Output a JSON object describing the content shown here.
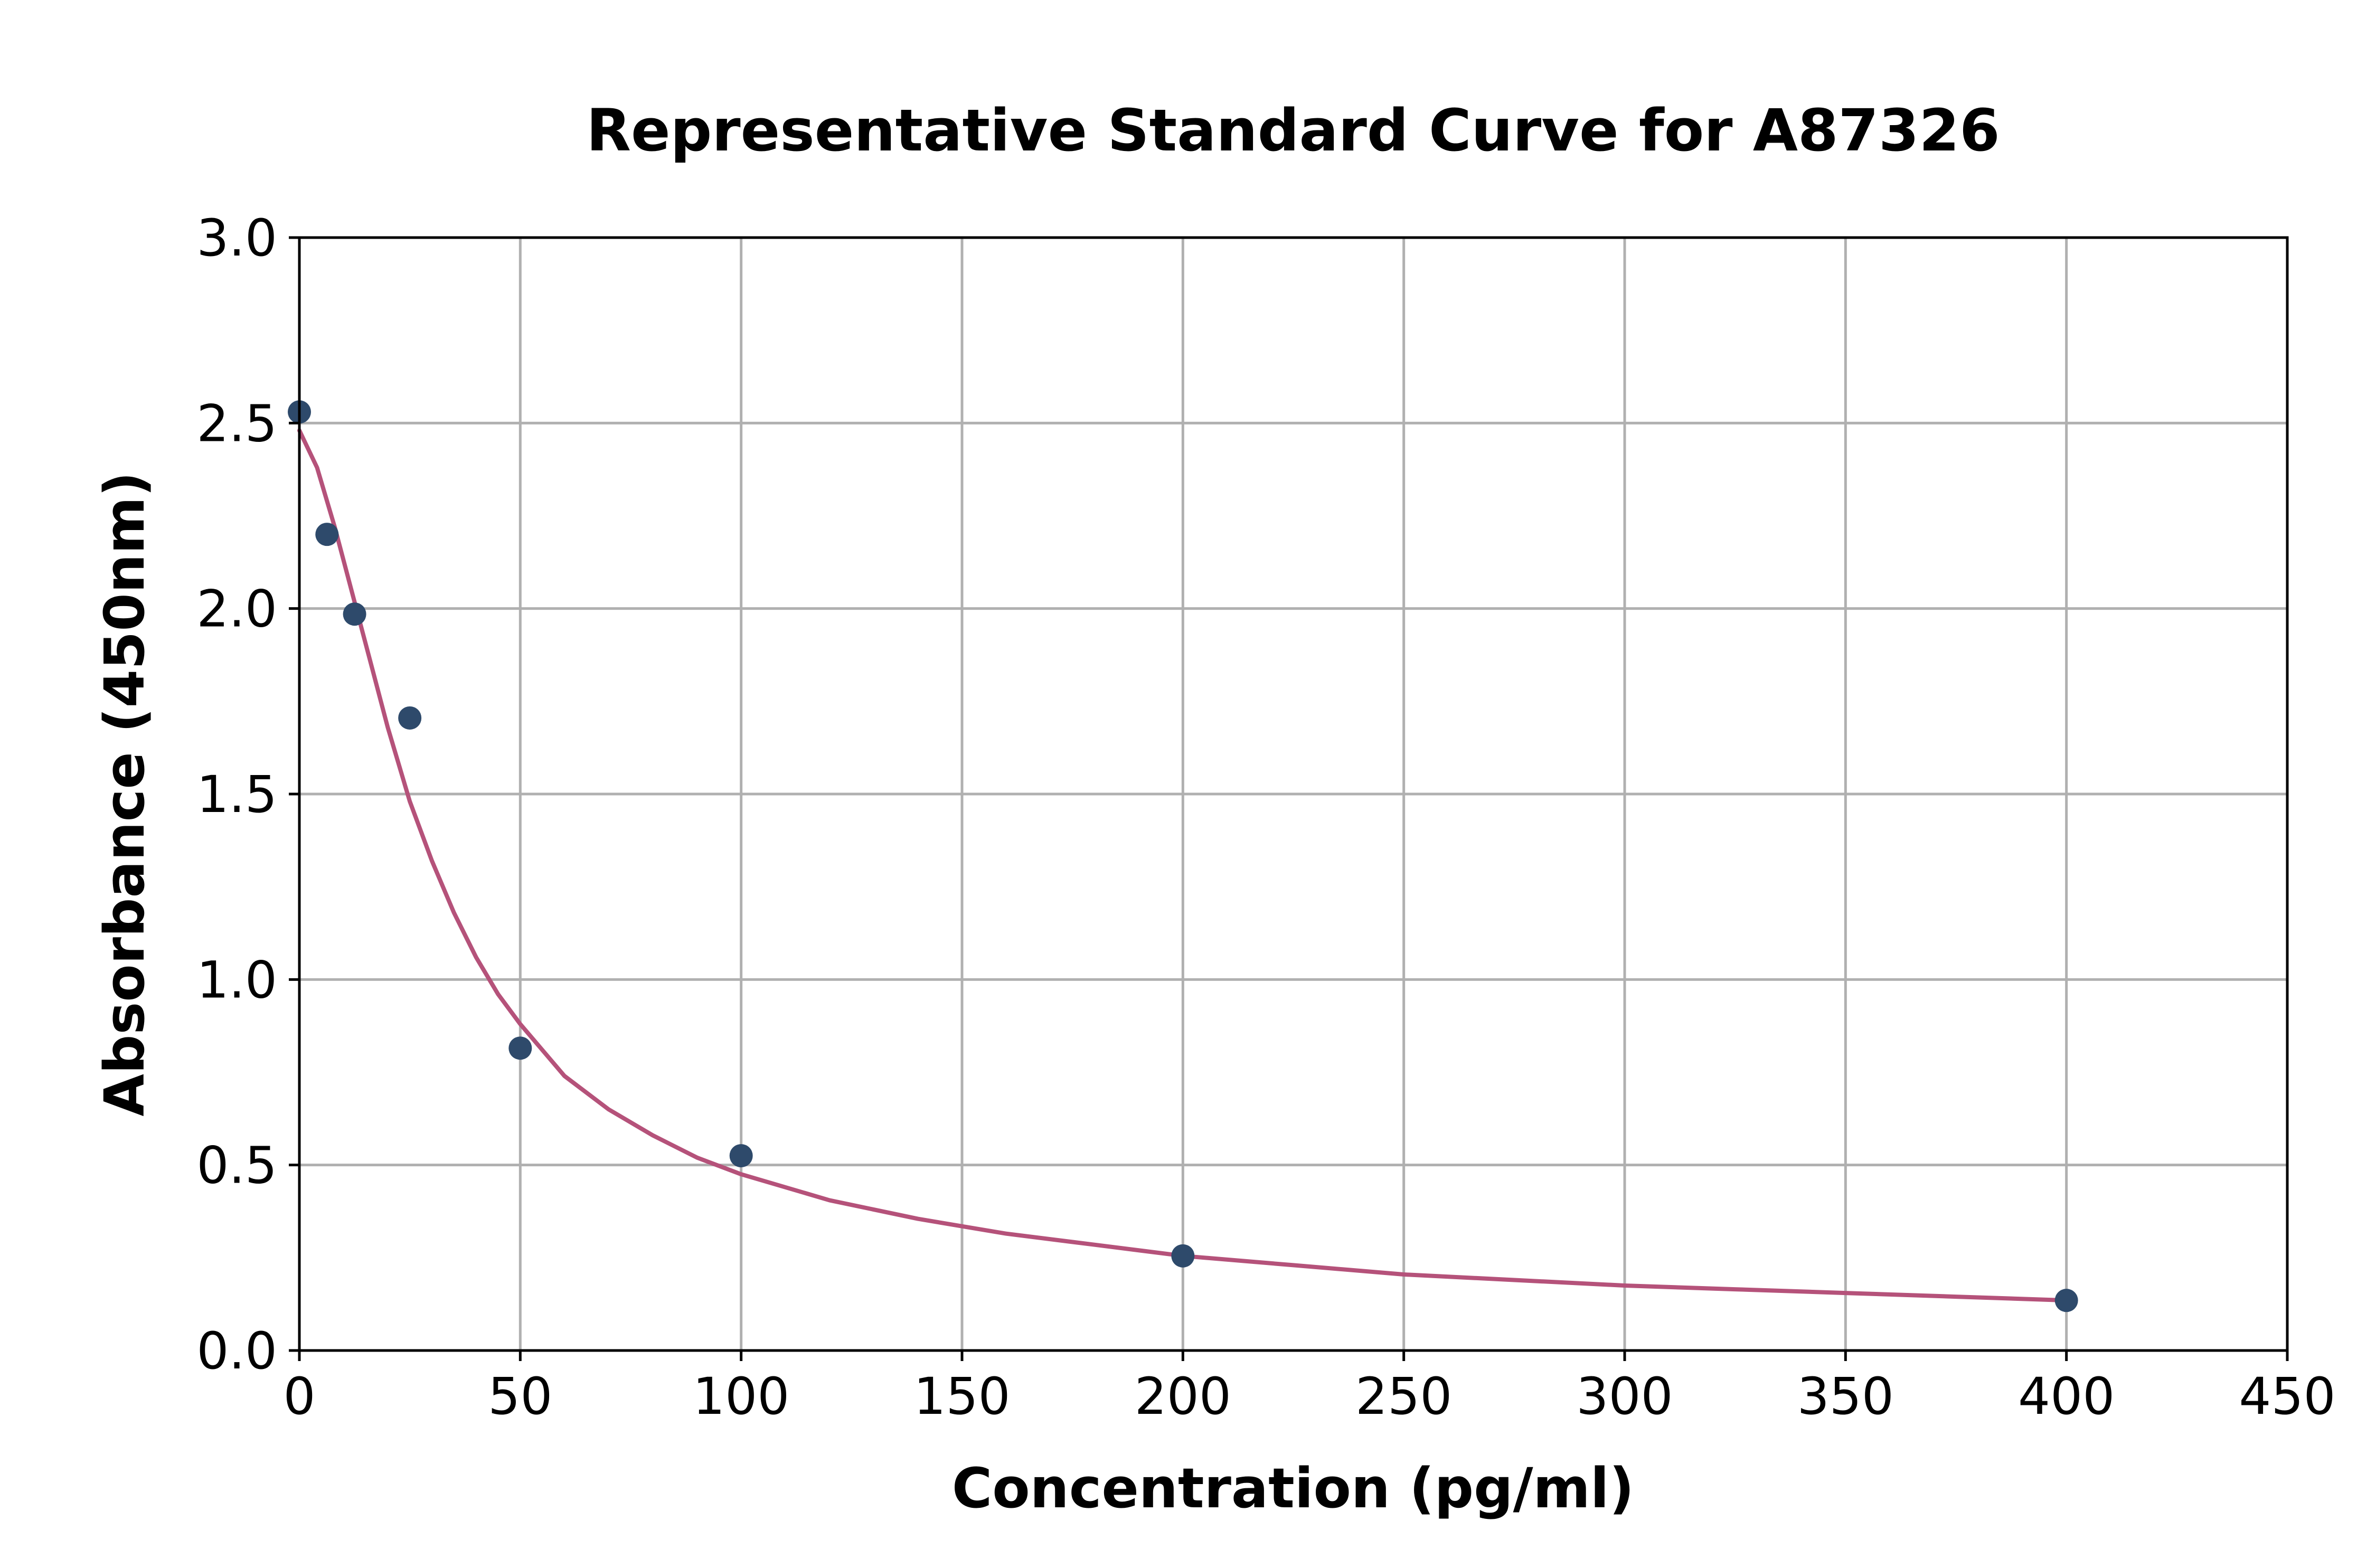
{
  "chart_data": {
    "type": "scatter",
    "title": "Representative Standard Curve for A87326",
    "xlabel": "Concentration (pg/ml)",
    "ylabel": "Absorbance (450nm)",
    "xlim": [
      0,
      450
    ],
    "ylim": [
      0,
      3.0
    ],
    "xticks": [
      0,
      50,
      100,
      150,
      200,
      250,
      300,
      350,
      400,
      450
    ],
    "xtick_labels": [
      "0",
      "50",
      "100",
      "150",
      "200",
      "250",
      "300",
      "350",
      "400",
      "450"
    ],
    "yticks": [
      0,
      0.5,
      1.0,
      1.5,
      2.0,
      2.5,
      3.0
    ],
    "ytick_labels": [
      "0.0",
      "0.5",
      "1.0",
      "1.5",
      "2.0",
      "2.5",
      "3.0"
    ],
    "grid": true,
    "series": [
      {
        "kind": "points",
        "color": "#2e4a6b",
        "x": [
          0,
          6.25,
          12.5,
          25,
          50,
          100,
          200,
          400
        ],
        "y": [
          2.53,
          2.2,
          1.985,
          1.705,
          0.815,
          0.525,
          0.255,
          0.135
        ]
      },
      {
        "kind": "fit-line",
        "color": "#b5527a",
        "x": [
          0,
          4,
          8,
          12,
          16,
          20,
          25,
          30,
          35,
          40,
          45,
          50,
          60,
          70,
          80,
          90,
          100,
          120,
          140,
          160,
          180,
          200,
          225,
          250,
          275,
          300,
          325,
          350,
          375,
          400
        ],
        "y": [
          2.48,
          2.38,
          2.22,
          2.04,
          1.86,
          1.68,
          1.48,
          1.32,
          1.18,
          1.06,
          0.96,
          0.88,
          0.74,
          0.65,
          0.58,
          0.52,
          0.475,
          0.405,
          0.355,
          0.315,
          0.285,
          0.255,
          0.23,
          0.205,
          0.19,
          0.175,
          0.165,
          0.155,
          0.145,
          0.135
        ]
      }
    ]
  }
}
